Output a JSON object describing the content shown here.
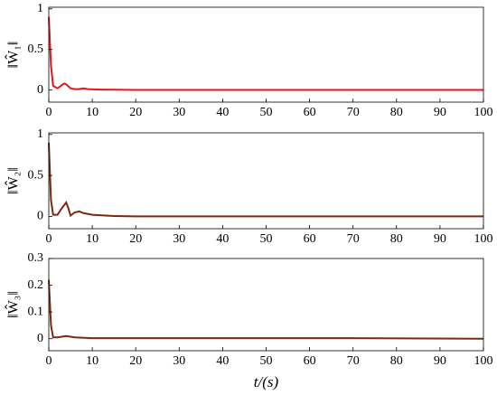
{
  "chart_data": [
    {
      "type": "line",
      "ylabel": "‖Ŵ₁‖",
      "xlim": [
        0,
        100
      ],
      "ylim": [
        -0.15,
        1.02
      ],
      "xticks": [
        0,
        10,
        20,
        30,
        40,
        50,
        60,
        70,
        80,
        90,
        100
      ],
      "yticks": [
        0,
        0.5,
        1
      ],
      "x": [
        0,
        0.5,
        1,
        2,
        3,
        3.5,
        4,
        5,
        6,
        7,
        8,
        9,
        12,
        20,
        100
      ],
      "series": [
        {
          "color": "#e8141b",
          "values": [
            0.9,
            0.3,
            0.05,
            0.02,
            0.06,
            0.08,
            0.07,
            0.02,
            0.01,
            0.01,
            0.02,
            0.01,
            0.005,
            0,
            0
          ]
        }
      ]
    },
    {
      "type": "line",
      "ylabel": "‖Ŵ₂‖",
      "xlim": [
        0,
        100
      ],
      "ylim": [
        -0.15,
        1.02
      ],
      "xticks": [
        0,
        10,
        20,
        30,
        40,
        50,
        60,
        70,
        80,
        90,
        100
      ],
      "yticks": [
        0,
        0.5,
        1
      ],
      "x": [
        0,
        0.5,
        1,
        2,
        3,
        4,
        4.5,
        5,
        6,
        7,
        8,
        10,
        15,
        20,
        100
      ],
      "series": [
        {
          "color": "#7a2a10",
          "values": [
            0.9,
            0.2,
            0.02,
            0.02,
            0.1,
            0.17,
            0.1,
            0.01,
            0.05,
            0.06,
            0.04,
            0.02,
            0.005,
            0,
            0
          ]
        }
      ]
    },
    {
      "type": "line",
      "ylabel": "‖Ŵ₃‖",
      "xlabel": "t/(s)",
      "xlim": [
        0,
        100
      ],
      "ylim": [
        -0.045,
        0.3
      ],
      "xticks": [
        0,
        10,
        20,
        30,
        40,
        50,
        60,
        70,
        80,
        90,
        100
      ],
      "yticks": [
        0,
        0.1,
        0.2,
        0.3
      ],
      "x": [
        0,
        0.5,
        1,
        2,
        4,
        6,
        10,
        30,
        70,
        100
      ],
      "series": [
        {
          "color": "#7a2a10",
          "values": [
            0.22,
            0.05,
            0.005,
            0.005,
            0.01,
            0.005,
            0.002,
            0.002,
            0.002,
            0
          ]
        }
      ]
    }
  ]
}
